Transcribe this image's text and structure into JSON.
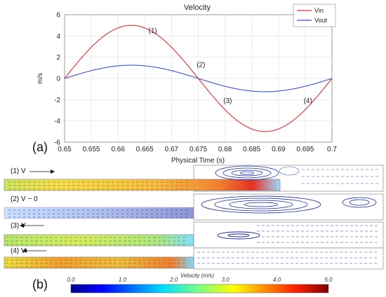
{
  "figure": {
    "panel_a": "(a)",
    "panel_b": "(b)"
  },
  "chart_data": {
    "type": "line",
    "title": "Velocity",
    "xlabel": "Physical Time (s)",
    "ylabel": "m/s",
    "xlim": [
      0.65,
      0.7
    ],
    "ylim": [
      -6,
      6
    ],
    "xticks": [
      "0.65",
      "0.655",
      "0.66",
      "0.665",
      "0.67",
      "0.675",
      "0.68",
      "0.685",
      "0.69",
      "0.695",
      "0.7"
    ],
    "yticks": [
      "-6",
      "-4",
      "-2",
      "0",
      "2",
      "4",
      "6"
    ],
    "grid": true,
    "legend_position": "top-right",
    "series": [
      {
        "name": "Vin",
        "color": "#e8292f",
        "amplitude": 5.0,
        "period": 0.05,
        "t0": 0.65,
        "x": [
          0.65,
          0.65625,
          0.6625,
          0.66875,
          0.675,
          0.68125,
          0.6875,
          0.69375,
          0.7
        ],
        "y": [
          0,
          3.54,
          5.0,
          3.54,
          0,
          -3.54,
          -5.0,
          -3.54,
          0
        ]
      },
      {
        "name": "Vout",
        "color": "#3b4fd8",
        "amplitude": 1.25,
        "period": 0.05,
        "t0": 0.65,
        "x": [
          0.65,
          0.65625,
          0.6625,
          0.66875,
          0.675,
          0.68125,
          0.6875,
          0.69375,
          0.7
        ],
        "y": [
          0,
          0.88,
          1.25,
          0.88,
          0,
          -0.88,
          -1.25,
          -0.88,
          0
        ]
      }
    ],
    "annotations": [
      {
        "text": "(1)",
        "x": 0.6665,
        "y": 4.3
      },
      {
        "text": "(2)",
        "x": 0.6755,
        "y": 1.1
      },
      {
        "text": "(3)",
        "x": 0.6805,
        "y": -2.3
      },
      {
        "text": "(4)",
        "x": 0.6955,
        "y": -2.3
      }
    ]
  },
  "flow_panels": [
    {
      "label": "(1) V",
      "arrow": "right"
    },
    {
      "label": "(2) V ~ 0",
      "arrow": "none"
    },
    {
      "label": "(3) V",
      "arrow": "left"
    },
    {
      "label": "(4) V",
      "arrow": "left"
    }
  ],
  "colorbar": {
    "title": "Velocity (m/s)",
    "ticks": [
      "0.0",
      "1.0",
      "2.0",
      "3.0",
      "4.0",
      "5.0"
    ],
    "range": [
      0,
      5
    ]
  }
}
